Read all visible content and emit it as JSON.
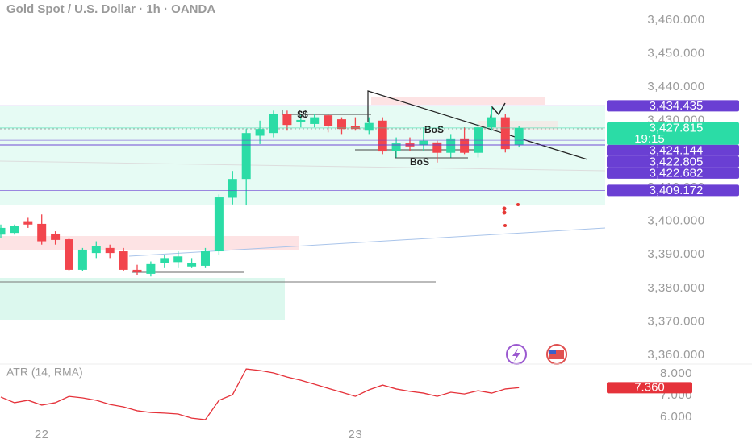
{
  "chart_data": [
    {
      "type": "candlestick",
      "title": "Gold Spot / U.S. Dollar · 1h · OANDA",
      "categories": [
        null,
        null,
        null,
        "22",
        null,
        null,
        null,
        null,
        null,
        null,
        null,
        null,
        null,
        null,
        null,
        null,
        null,
        null,
        null,
        null,
        null,
        null,
        null,
        null,
        null,
        null,
        "23",
        null,
        null,
        null,
        null,
        null,
        null,
        null,
        null,
        null,
        null,
        null,
        null
      ],
      "open": [
        3396,
        3396.5,
        3400,
        3399.2,
        3396.3,
        3394.6,
        3385.5,
        3390.5,
        3392,
        3391,
        3385.5,
        3384.3,
        3387.5,
        3387.8,
        3386.5,
        3386.7,
        3391,
        3407,
        3412.6,
        3425.5,
        3426.3,
        3431.9,
        3429.6,
        3429,
        3431.6,
        3430.4,
        3428.5,
        3427,
        3430,
        3421,
        3423.2,
        3422.7,
        3423.5,
        3420.4,
        3424.7,
        3420.4,
        3428,
        3431,
        3422.8
      ],
      "high": [
        3399,
        3399,
        3401,
        3402,
        3397,
        3395,
        3392,
        3394,
        3393,
        3392,
        3387,
        3388,
        3390,
        3391,
        3389,
        3392,
        3408,
        3415,
        3427.5,
        3430,
        3433,
        3433,
        3432,
        3432,
        3432,
        3431,
        3431,
        3431,
        3431,
        3425,
        3425,
        3428,
        3424,
        3426,
        3428,
        3429,
        3434,
        3432,
        3428.5
      ],
      "low": [
        3395,
        3396,
        3398,
        3393,
        3393,
        3385,
        3385,
        3389,
        3389,
        3385,
        3384,
        3383.5,
        3386,
        3386,
        3386,
        3386,
        3390,
        3405,
        3404.7,
        3423,
        3425,
        3427,
        3428,
        3428,
        3426.5,
        3426,
        3427,
        3426,
        3420,
        3419,
        3421,
        3421,
        3417.5,
        3419,
        3420,
        3419,
        3427,
        3420.5,
        3422
      ],
      "close": [
        3398,
        3398.5,
        3399,
        3394,
        3394.4,
        3385.5,
        3391.5,
        3392.5,
        3390.5,
        3385.5,
        3384.8,
        3387.2,
        3389,
        3389.5,
        3387.5,
        3391,
        3407.1,
        3412.6,
        3426.3,
        3427.5,
        3431.9,
        3428.7,
        3430.2,
        3431,
        3428.3,
        3427.5,
        3427.5,
        3429.3,
        3420.8,
        3423.2,
        3422.3,
        3424,
        3420.4,
        3424.7,
        3420.4,
        3428,
        3431,
        3421.5,
        3427.8
      ],
      "up_color": "#2bdca6",
      "down_color": "#f2454d",
      "ylim": [
        3357.84,
        3466
      ],
      "yticks": [
        {
          "value": 3360,
          "label": "3,360.000"
        },
        {
          "value": 3370,
          "label": "3,370.000"
        },
        {
          "value": 3380,
          "label": "3,380.000"
        },
        {
          "value": 3390,
          "label": "3,390.000"
        },
        {
          "value": 3400,
          "label": "3,400.000"
        },
        {
          "value": 3410,
          "label": "3,410.000"
        },
        {
          "value": 3420,
          "label": "3,420.000"
        },
        {
          "value": 3430,
          "label": "3,430.000"
        },
        {
          "value": 3440,
          "label": "3,440.000"
        },
        {
          "value": 3450,
          "label": "3,450.000"
        },
        {
          "value": 3460,
          "label": "3,460.000"
        }
      ],
      "price_lines": [
        {
          "value": 3434.435,
          "label": "3,434.435",
          "color": "#6a3fd3"
        },
        {
          "value": 3427.815,
          "label": "3,427.815",
          "color": "#2bdca6",
          "countdown": "19:15"
        },
        {
          "value": 3424.144,
          "label": "3,424.144",
          "color": "#6a3fd3"
        },
        {
          "value": 3422.805,
          "label": "3,422.805",
          "color": "#6a3fd3"
        },
        {
          "value": 3422.682,
          "label": "3,422.682",
          "color": "#6a3fd3"
        },
        {
          "value": 3409.172,
          "label": "3,409.172",
          "color": "#6a3fd3"
        }
      ],
      "annotations": [
        "$$",
        "BoS",
        "BoS"
      ]
    },
    {
      "type": "line",
      "title": "ATR (14, RMA)",
      "values": [
        6.93,
        6.67,
        6.78,
        6.56,
        6.67,
        6.96,
        6.89,
        6.78,
        6.59,
        6.48,
        6.3,
        6.22,
        6.19,
        6.15,
        5.96,
        5.89,
        6.78,
        7.04,
        8.22,
        8.15,
        8.04,
        7.85,
        7.7,
        7.52,
        7.33,
        7.15,
        6.96,
        7.26,
        7.48,
        7.3,
        7.19,
        7.11,
        6.96,
        7.15,
        7.07,
        7.22,
        7.11,
        7.3,
        7.36
      ],
      "color": "#e5323a",
      "ylim": [
        4.89,
        8.52
      ],
      "yticks": [
        {
          "value": 6,
          "label": "6.000"
        },
        {
          "value": 7,
          "label": "7.000"
        },
        {
          "value": 8,
          "label": "8.000"
        }
      ],
      "last_label": {
        "value": 7.36,
        "label": "7.360"
      }
    }
  ]
}
